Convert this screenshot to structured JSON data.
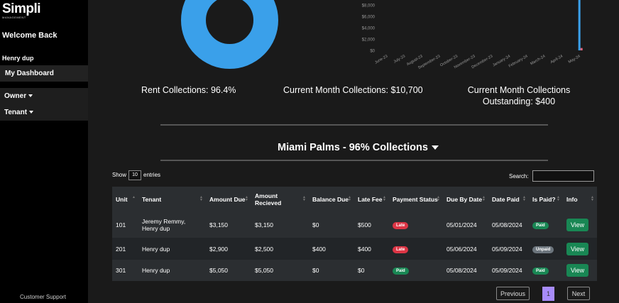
{
  "brand": {
    "name": "Simpli",
    "sub": "MANAGEMENT"
  },
  "sidebar": {
    "welcome": "Welcome Back",
    "username": "Henry dup",
    "dashboard": "My Dashboard",
    "owner": "Owner",
    "tenant": "Tenant",
    "support": "Customer Support"
  },
  "chart_data": {
    "type": "bar",
    "y_ticks": [
      "$8,000",
      "$6,000",
      "$4,000",
      "$2,000",
      "$0"
    ],
    "categories": [
      "June-23",
      "July-23",
      "August-23",
      "September-23",
      "October-23",
      "November-23",
      "December-23",
      "January-24",
      "February-24",
      "March-24",
      "April-24",
      "May-24"
    ],
    "series": [
      {
        "values": [
          0,
          0,
          0,
          0,
          0,
          0,
          0,
          0,
          0,
          0,
          0,
          10700
        ],
        "color": "#3aa0ea"
      },
      {
        "values": [
          0,
          0,
          0,
          0,
          0,
          0,
          0,
          0,
          0,
          0,
          0,
          400
        ],
        "color": "#e8667a"
      }
    ],
    "ylim": [
      0,
      10700
    ]
  },
  "stats": {
    "rent_collections": "Rent Collections: 96.4%",
    "current_month": "Current Month Collections: $10,700",
    "outstanding_line1": "Current Month Collections",
    "outstanding_line2": "Outstanding: $400"
  },
  "property": {
    "title": "Miami Palms - 96% Collections"
  },
  "table_controls": {
    "show": "Show",
    "entries_value": "10",
    "entries": "entries",
    "search_label": "Search:"
  },
  "table": {
    "headers": [
      "Unit",
      "Tenant",
      "Amount Due",
      "Amount Recieved",
      "Balance Due",
      "Late Fee",
      "Payment Status",
      "Due By Date",
      "Date Paid",
      "Is Paid?",
      "Info"
    ],
    "rows": [
      {
        "unit": "101",
        "tenant": "Jeremy Remmy, Henry dup",
        "due": "$3,150",
        "received": "$3,150",
        "balance": "$0",
        "late_fee": "$500",
        "status": "Late",
        "due_date": "05/01/2024",
        "paid_date": "05/08/2024",
        "is_paid": "Paid",
        "info": "View"
      },
      {
        "unit": "201",
        "tenant": "Henry dup",
        "due": "$2,900",
        "received": "$2,500",
        "balance": "$400",
        "late_fee": "$400",
        "status": "Late",
        "due_date": "05/06/2024",
        "paid_date": "05/09/2024",
        "is_paid": "Unpaid",
        "info": "View"
      },
      {
        "unit": "301",
        "tenant": "Henry dup",
        "due": "$5,050",
        "received": "$5,050",
        "balance": "$0",
        "late_fee": "$0",
        "status": "Paid",
        "due_date": "05/08/2024",
        "paid_date": "05/09/2024",
        "is_paid": "Paid",
        "info": "View"
      }
    ]
  },
  "pagination": {
    "previous": "Previous",
    "page": "1",
    "next": "Next"
  }
}
